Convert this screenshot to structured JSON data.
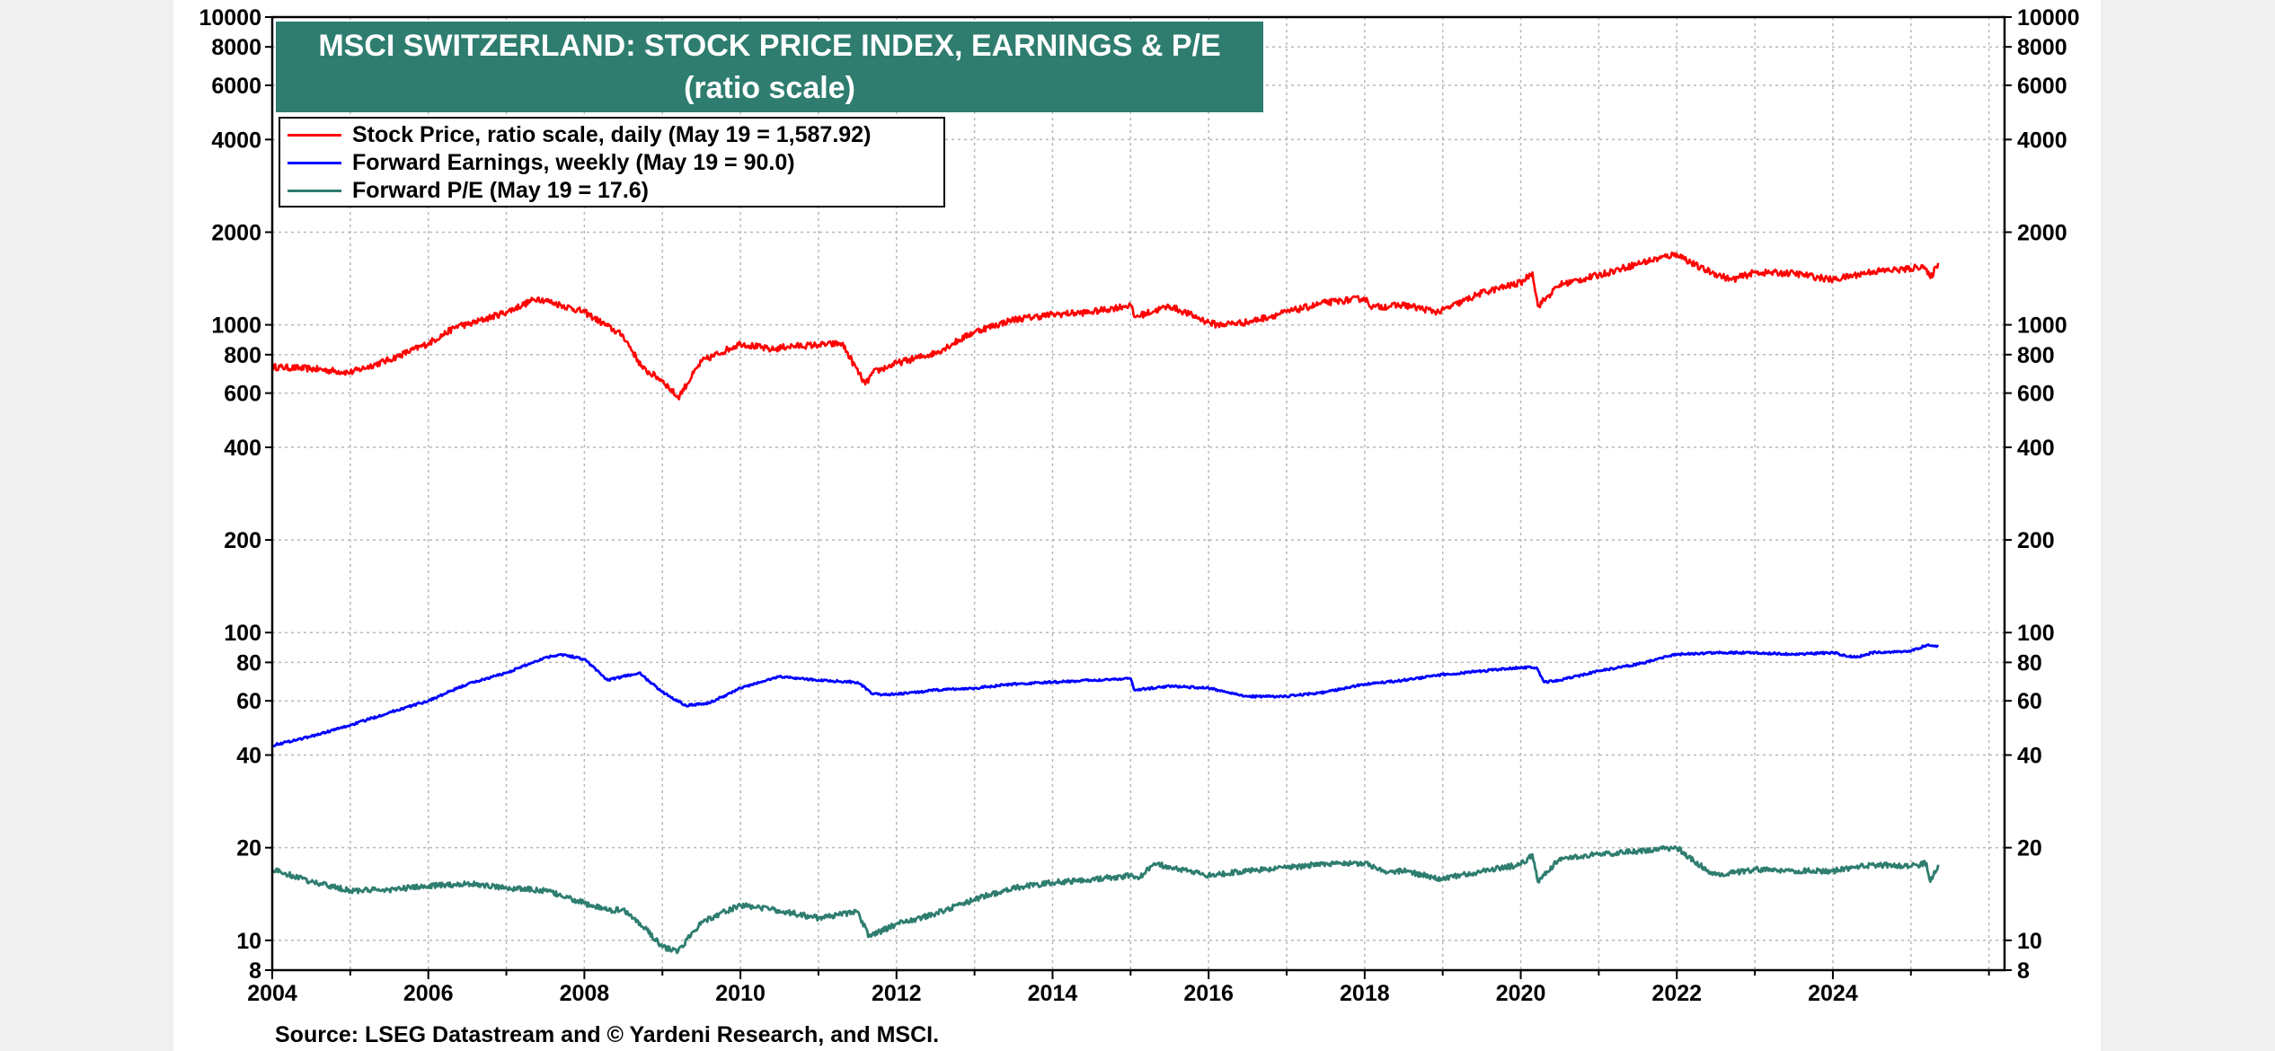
{
  "chart_data": {
    "type": "line",
    "title": "MSCI SWITZERLAND: STOCK PRICE INDEX, EARNINGS & P/E",
    "subtitle": "(ratio scale)",
    "y_scale": "log",
    "ylim": [
      8,
      10000
    ],
    "y_ticks": [
      "10000",
      "8000",
      "6000",
      "4000",
      "2000",
      "1000",
      "800",
      "600",
      "400",
      "200",
      "100",
      "80",
      "60",
      "40",
      "20",
      "10",
      "8"
    ],
    "y_tick_values": [
      10000,
      8000,
      6000,
      4000,
      2000,
      1000,
      800,
      600,
      400,
      200,
      100,
      80,
      60,
      40,
      20,
      10,
      8
    ],
    "xlim": [
      2004.0,
      2026.2
    ],
    "x_ticks": [
      "2004",
      "2006",
      "2008",
      "2010",
      "2012",
      "2014",
      "2016",
      "2018",
      "2020",
      "2022",
      "2024"
    ],
    "grid": true,
    "legend_placement": "top-left",
    "series": [
      {
        "name": "Stock Price, ratio scale, daily (May 19 = 1,587.92)",
        "color": "#ff0000",
        "x": [
          2004.0,
          2004.5,
          2005.0,
          2005.5,
          2006.0,
          2006.4,
          2006.5,
          2007.0,
          2007.4,
          2007.6,
          2008.0,
          2008.5,
          2008.75,
          2009.0,
          2009.2,
          2009.5,
          2010.0,
          2010.4,
          2010.6,
          2011.0,
          2011.3,
          2011.6,
          2011.7,
          2012.0,
          2012.5,
          2013.0,
          2013.5,
          2014.0,
          2014.5,
          2015.0,
          2015.05,
          2015.5,
          2016.0,
          2016.1,
          2016.5,
          2017.0,
          2017.5,
          2018.0,
          2018.1,
          2018.5,
          2018.95,
          2019.5,
          2020.0,
          2020.15,
          2020.22,
          2020.5,
          2021.0,
          2021.5,
          2022.0,
          2022.3,
          2022.7,
          2023.0,
          2023.5,
          2024.0,
          2024.5,
          2025.0,
          2025.15,
          2025.25,
          2025.35
        ],
        "values": [
          730,
          720,
          700,
          770,
          870,
          1000,
          1000,
          1100,
          1220,
          1180,
          1100,
          920,
          720,
          660,
          580,
          760,
          870,
          830,
          850,
          860,
          870,
          640,
          700,
          750,
          810,
          950,
          1040,
          1080,
          1100,
          1160,
          1060,
          1150,
          1020,
          1000,
          1020,
          1100,
          1180,
          1220,
          1140,
          1160,
          1100,
          1270,
          1370,
          1480,
          1150,
          1350,
          1450,
          1580,
          1700,
          1530,
          1400,
          1480,
          1470,
          1400,
          1490,
          1520,
          1560,
          1420,
          1588
        ]
      },
      {
        "name": "Forward Earnings, weekly (May 19 = 90.0)",
        "color": "#0000ff",
        "x": [
          2004.0,
          2004.5,
          2005.0,
          2005.5,
          2006.0,
          2006.5,
          2007.0,
          2007.5,
          2007.7,
          2008.0,
          2008.3,
          2008.7,
          2009.0,
          2009.3,
          2009.6,
          2010.0,
          2010.5,
          2011.0,
          2011.5,
          2011.7,
          2012.0,
          2012.5,
          2013.0,
          2013.5,
          2014.0,
          2014.5,
          2015.0,
          2015.05,
          2015.5,
          2016.0,
          2016.5,
          2017.0,
          2017.5,
          2018.0,
          2018.5,
          2019.0,
          2019.5,
          2020.0,
          2020.2,
          2020.3,
          2020.5,
          2021.0,
          2021.5,
          2022.0,
          2022.5,
          2023.0,
          2023.5,
          2024.0,
          2024.3,
          2024.5,
          2025.0,
          2025.2,
          2025.35
        ],
        "values": [
          43,
          46,
          50,
          55,
          60,
          68,
          74,
          83,
          85,
          82,
          70,
          74,
          64,
          58,
          59,
          66,
          72,
          70,
          69,
          63,
          63,
          65,
          66,
          68,
          69,
          70,
          71,
          65,
          67,
          66,
          62,
          62,
          64,
          68,
          70,
          73,
          75,
          77,
          77,
          69,
          70,
          75,
          79,
          85,
          86,
          86,
          85,
          86,
          83,
          86,
          87,
          91,
          90
        ]
      },
      {
        "name": "Forward P/E (May 19 = 17.6)",
        "color": "#2e7d6f",
        "x": [
          2004.0,
          2004.5,
          2005.0,
          2005.5,
          2006.0,
          2006.5,
          2007.0,
          2007.5,
          2008.0,
          2008.3,
          2008.5,
          2008.8,
          2009.0,
          2009.2,
          2009.5,
          2010.0,
          2010.5,
          2011.0,
          2011.5,
          2011.65,
          2012.0,
          2012.5,
          2013.0,
          2013.5,
          2014.0,
          2014.5,
          2015.0,
          2015.1,
          2015.3,
          2015.6,
          2016.0,
          2016.5,
          2017.0,
          2017.5,
          2018.0,
          2018.3,
          2018.5,
          2019.0,
          2019.5,
          2020.0,
          2020.15,
          2020.22,
          2020.5,
          2021.0,
          2021.5,
          2022.0,
          2022.3,
          2022.5,
          2023.0,
          2023.5,
          2024.0,
          2024.5,
          2025.0,
          2025.2,
          2025.25,
          2025.35
        ],
        "values": [
          17.0,
          15.5,
          14.5,
          14.6,
          15.0,
          15.3,
          14.8,
          14.5,
          13.2,
          12.5,
          12.6,
          10.8,
          9.5,
          9.2,
          11.5,
          13.0,
          12.5,
          11.8,
          12.4,
          10.3,
          11.3,
          12.2,
          13.6,
          14.8,
          15.4,
          15.8,
          16.2,
          15.8,
          17.8,
          17.0,
          16.3,
          16.8,
          17.2,
          17.8,
          17.8,
          16.6,
          16.8,
          15.8,
          16.8,
          17.6,
          19.0,
          15.5,
          18.5,
          19.0,
          19.5,
          20.0,
          17.5,
          16.3,
          17.0,
          16.8,
          16.8,
          17.6,
          17.4,
          17.8,
          15.5,
          17.6
        ]
      }
    ]
  },
  "source_note": "Source: LSEG Datastream and © Yardeni Research, and MSCI."
}
